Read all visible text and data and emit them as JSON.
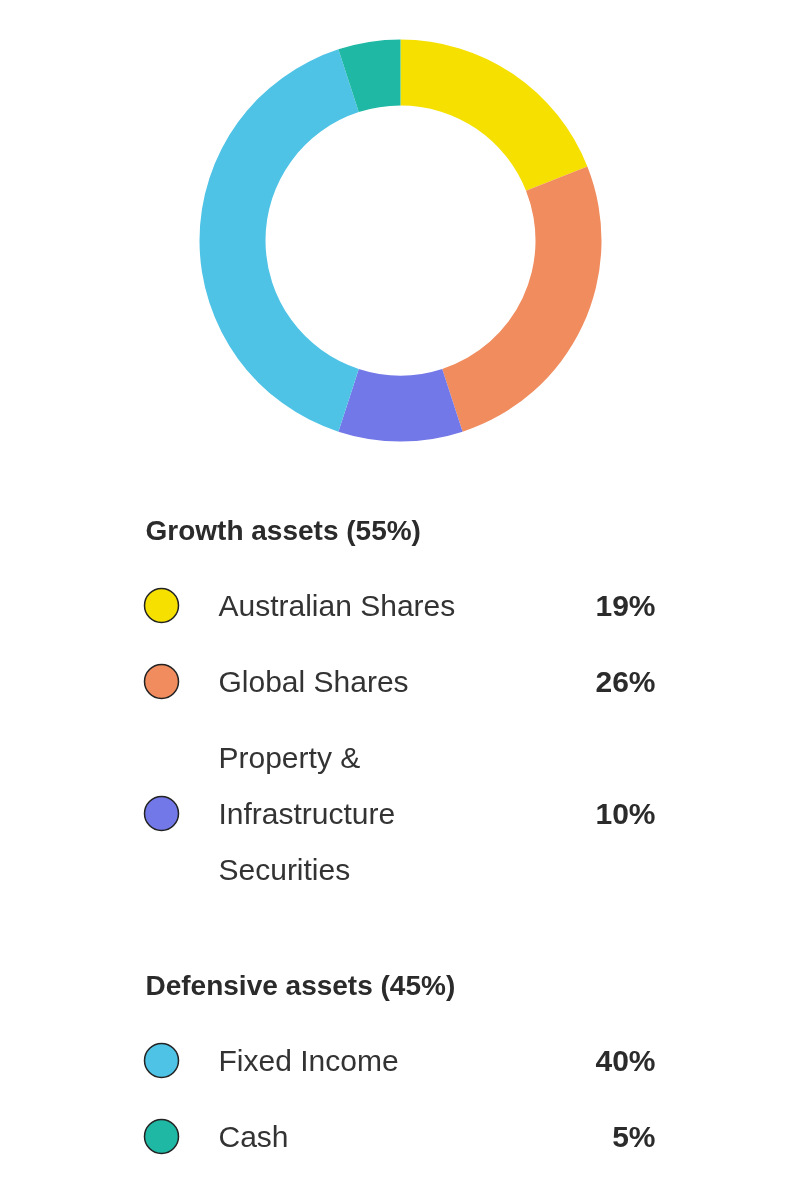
{
  "chart_data": {
    "type": "donut",
    "categories": [
      "Australian Shares",
      "Global Shares",
      "Property & Infrastructure Securities",
      "Fixed Income",
      "Cash"
    ],
    "values": [
      19,
      26,
      10,
      40,
      5
    ],
    "value_labels": [
      "19%",
      "26%",
      "10%",
      "40%",
      "5%"
    ],
    "colors": [
      "#f5e000",
      "#f08c5e",
      "#7378e8",
      "#4fc3e6",
      "#1fb8a4"
    ],
    "annotations": [
      "Growth assets (55%)",
      "Defensive assets (45%)"
    ],
    "legend": "bottom"
  }
}
